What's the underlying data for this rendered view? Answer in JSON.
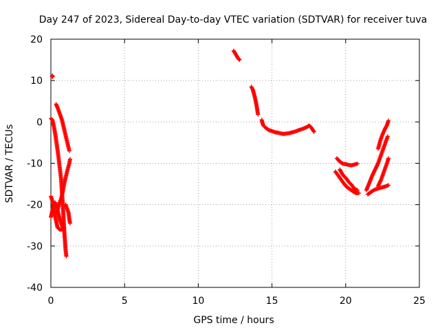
{
  "chart_data": {
    "type": "scatter",
    "title": "Day 247 of 2023, Sidereal Day-to-day VTEC variation (SDTVAR) for receiver tuva",
    "xlabel": "GPS time / hours",
    "ylabel": "SDTVAR / TECUs",
    "xlim": [
      0,
      25
    ],
    "ylim": [
      -40,
      20
    ],
    "xticks": [
      0,
      5,
      10,
      15,
      20,
      25
    ],
    "yticks": [
      -40,
      -30,
      -20,
      -10,
      0,
      10,
      20
    ],
    "xtick_labels": [
      "0",
      "5",
      "10",
      "15",
      "20",
      "25"
    ],
    "ytick_labels": [
      "-40",
      "-30",
      "-20",
      "-10",
      "0",
      "10",
      "20"
    ],
    "grid": true,
    "marker": "+",
    "color": "#ff0000",
    "series": [
      {
        "name": "SDTVAR",
        "segments": [
          [
            [
              0.08,
              11.0
            ],
            [
              0.1,
              11.2
            ],
            [
              0.12,
              10.9
            ]
          ],
          [
            [
              0.0,
              0.8
            ],
            [
              0.1,
              0.5
            ],
            [
              0.2,
              -1.0
            ],
            [
              0.3,
              -3.0
            ],
            [
              0.4,
              -5.5
            ],
            [
              0.5,
              -8.0
            ],
            [
              0.6,
              -11.0
            ],
            [
              0.7,
              -14.0
            ],
            [
              0.75,
              -17.0
            ],
            [
              0.8,
              -19.5
            ],
            [
              0.85,
              -22.5
            ],
            [
              0.9,
              -26.0
            ],
            [
              0.95,
              -28.5
            ],
            [
              1.0,
              -31.0
            ],
            [
              1.05,
              -32.5
            ]
          ],
          [
            [
              0.35,
              4.3
            ],
            [
              0.45,
              3.5
            ],
            [
              0.55,
              2.5
            ],
            [
              0.65,
              1.5
            ],
            [
              0.75,
              0.5
            ],
            [
              0.85,
              -1.0
            ],
            [
              0.95,
              -2.5
            ],
            [
              1.05,
              -4.0
            ],
            [
              1.15,
              -5.5
            ],
            [
              1.25,
              -7.0
            ]
          ],
          [
            [
              0.0,
              -23.0
            ],
            [
              0.1,
              -21.5
            ],
            [
              0.2,
              -20.0
            ],
            [
              0.3,
              -19.5
            ],
            [
              0.4,
              -20.5
            ],
            [
              0.5,
              -22.0
            ],
            [
              0.6,
              -23.5
            ],
            [
              0.7,
              -24.5
            ],
            [
              0.8,
              -25.5
            ],
            [
              0.9,
              -26.0
            ]
          ],
          [
            [
              0.0,
              -18.0
            ],
            [
              0.1,
              -19.0
            ],
            [
              0.2,
              -21.0
            ],
            [
              0.3,
              -23.0
            ],
            [
              0.45,
              -25.5
            ],
            [
              0.6,
              -26.0
            ],
            [
              0.75,
              -26.0
            ],
            [
              0.9,
              -25.5
            ]
          ],
          [
            [
              0.4,
              -22.0
            ],
            [
              0.55,
              -20.0
            ],
            [
              0.7,
              -18.5
            ],
            [
              0.8,
              -17.0
            ],
            [
              0.9,
              -15.0
            ],
            [
              1.0,
              -13.5
            ],
            [
              1.1,
              -12.0
            ],
            [
              1.25,
              -10.0
            ],
            [
              1.3,
              -9.0
            ]
          ],
          [
            [
              1.0,
              -20.0
            ],
            [
              1.1,
              -21.0
            ],
            [
              1.2,
              -22.0
            ],
            [
              1.25,
              -23.5
            ],
            [
              1.3,
              -24.5
            ]
          ],
          [
            [
              12.4,
              17.2
            ],
            [
              12.5,
              16.6
            ],
            [
              12.6,
              16.0
            ],
            [
              12.7,
              15.4
            ],
            [
              12.8,
              15.0
            ]
          ],
          [
            [
              13.6,
              8.5
            ],
            [
              13.7,
              7.8
            ],
            [
              13.8,
              6.5
            ],
            [
              13.9,
              5.0
            ],
            [
              13.95,
              4.0
            ],
            [
              14.0,
              3.0
            ],
            [
              14.05,
              1.8
            ]
          ],
          [
            [
              14.3,
              0.5
            ],
            [
              14.4,
              -0.8
            ],
            [
              14.6,
              -1.5
            ],
            [
              14.8,
              -2.0
            ],
            [
              15.0,
              -2.2
            ],
            [
              15.2,
              -2.5
            ],
            [
              15.4,
              -2.6
            ],
            [
              15.6,
              -2.8
            ],
            [
              15.8,
              -2.9
            ],
            [
              16.0,
              -2.8
            ],
            [
              16.2,
              -2.7
            ],
            [
              16.4,
              -2.5
            ],
            [
              16.6,
              -2.3
            ],
            [
              16.8,
              -2.0
            ],
            [
              17.0,
              -1.8
            ],
            [
              17.2,
              -1.5
            ],
            [
              17.4,
              -1.2
            ],
            [
              17.5,
              -0.9
            ],
            [
              17.6,
              -1.1
            ],
            [
              17.75,
              -1.8
            ],
            [
              17.85,
              -2.4
            ]
          ],
          [
            [
              19.4,
              -8.8
            ],
            [
              19.6,
              -9.6
            ],
            [
              19.8,
              -10.1
            ],
            [
              20.0,
              -10.2
            ],
            [
              20.2,
              -10.4
            ],
            [
              20.4,
              -10.5
            ],
            [
              20.6,
              -10.3
            ],
            [
              20.8,
              -10.1
            ]
          ],
          [
            [
              19.3,
              -12.0
            ],
            [
              19.5,
              -13.0
            ],
            [
              19.7,
              -14.0
            ],
            [
              19.9,
              -15.0
            ],
            [
              20.1,
              -15.8
            ],
            [
              20.3,
              -16.3
            ],
            [
              20.5,
              -16.8
            ],
            [
              20.7,
              -17.2
            ],
            [
              20.9,
              -17.2
            ]
          ],
          [
            [
              19.6,
              -11.5
            ],
            [
              19.8,
              -12.8
            ],
            [
              20.0,
              -13.5
            ],
            [
              20.2,
              -14.5
            ],
            [
              20.4,
              -15.2
            ],
            [
              20.6,
              -16.2
            ],
            [
              20.8,
              -16.5
            ]
          ],
          [
            [
              21.4,
              -16.5
            ],
            [
              21.6,
              -14.8
            ],
            [
              21.8,
              -13.0
            ],
            [
              22.0,
              -11.5
            ],
            [
              22.2,
              -10.0
            ],
            [
              22.4,
              -8.0
            ],
            [
              22.55,
              -6.5
            ],
            [
              22.7,
              -5.0
            ],
            [
              22.85,
              -3.5
            ]
          ],
          [
            [
              22.2,
              -6.5
            ],
            [
              22.35,
              -4.5
            ],
            [
              22.5,
              -3.0
            ],
            [
              22.65,
              -1.8
            ],
            [
              22.8,
              -0.8
            ],
            [
              22.9,
              0.3
            ]
          ],
          [
            [
              21.5,
              -17.5
            ],
            [
              21.7,
              -17.0
            ],
            [
              21.9,
              -16.5
            ],
            [
              22.1,
              -16.2
            ],
            [
              22.3,
              -16.0
            ],
            [
              22.5,
              -15.8
            ],
            [
              22.7,
              -15.6
            ],
            [
              22.9,
              -15.3
            ]
          ],
          [
            [
              22.2,
              -15.5
            ],
            [
              22.4,
              -14.0
            ],
            [
              22.55,
              -12.5
            ],
            [
              22.7,
              -11.0
            ],
            [
              22.85,
              -9.5
            ],
            [
              22.9,
              -8.8
            ]
          ]
        ]
      }
    ]
  }
}
